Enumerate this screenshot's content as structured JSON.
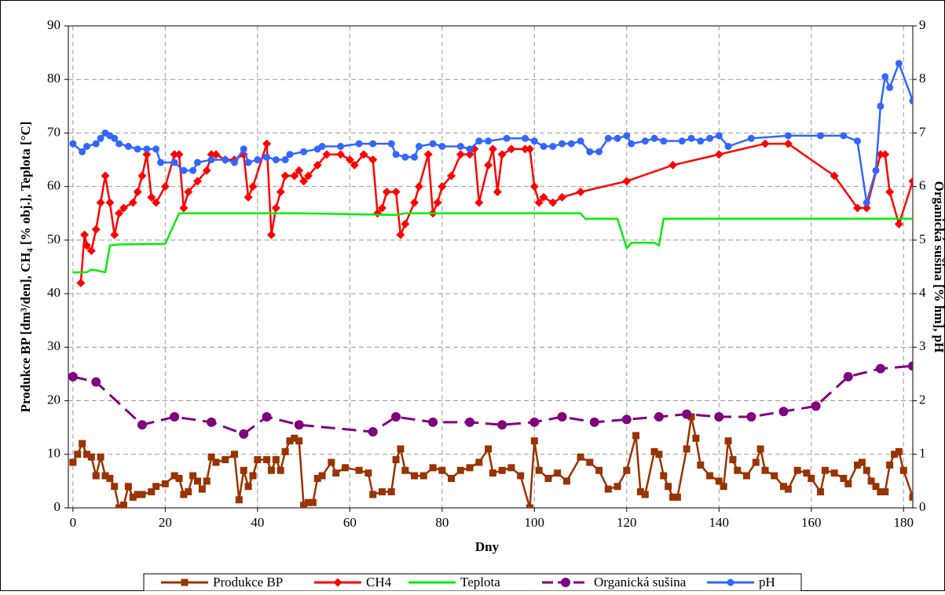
{
  "chart_data": {
    "type": "line",
    "xlabel": "Dny",
    "ylabel": "Produkce BP [dm³/den], CH₄ [% obj.], Teplota [°C]",
    "y2label": "Organická sušina [% hm], pH",
    "xlim": [
      -1,
      182
    ],
    "xticks": [
      0,
      20,
      40,
      60,
      80,
      100,
      120,
      140,
      160,
      180
    ],
    "ylim": [
      0,
      90
    ],
    "yticks": [
      0,
      10,
      20,
      30,
      40,
      50,
      60,
      70,
      80,
      90
    ],
    "y2lim": [
      0,
      9
    ],
    "y2ticks": [
      0,
      1,
      2,
      3,
      4,
      5,
      6,
      7,
      8,
      9
    ],
    "grid": true,
    "legend": "bottom",
    "series": [
      {
        "name": "Produkce BP",
        "color": "#993300",
        "marker": "square",
        "x": [
          0,
          1,
          2,
          3,
          4,
          5,
          6,
          7,
          8,
          9,
          10,
          11,
          12,
          13,
          14,
          15,
          17,
          18,
          20,
          22,
          23,
          24,
          25,
          26,
          27,
          28,
          29,
          30,
          31,
          33,
          35,
          36,
          37,
          38,
          39,
          40,
          42,
          43,
          44,
          45,
          46,
          47,
          48,
          49,
          50,
          51,
          52,
          53,
          54,
          56,
          57,
          59,
          62,
          64,
          65,
          67,
          69,
          70,
          71,
          72,
          74,
          76,
          78,
          80,
          82,
          84,
          86,
          88,
          90,
          91,
          93,
          95,
          97,
          99,
          100,
          101,
          103,
          105,
          107,
          110,
          112,
          114,
          116,
          118,
          120,
          122,
          123,
          124,
          126,
          127,
          128,
          129,
          130,
          131,
          133,
          134,
          135,
          136,
          138,
          140,
          141,
          142,
          143,
          144,
          146,
          148,
          149,
          150,
          152,
          154,
          155,
          157,
          159,
          160,
          162,
          163,
          165,
          167,
          168,
          170,
          171,
          172,
          173,
          174,
          175,
          176,
          177,
          178,
          179,
          180,
          182
        ],
        "values": [
          8.5,
          10,
          12,
          10,
          9.5,
          6,
          9.5,
          6,
          5.5,
          4,
          0,
          0.5,
          4,
          2,
          2.5,
          2.5,
          3,
          4,
          4.5,
          6,
          5.5,
          2.5,
          3,
          6,
          5,
          3.5,
          5,
          9.5,
          8.5,
          9,
          10,
          1.5,
          7,
          4,
          6,
          9,
          9,
          7,
          9,
          7,
          10.5,
          12.5,
          13,
          12.5,
          0.5,
          1,
          1,
          5.5,
          6,
          8.5,
          6.5,
          7.5,
          7,
          6.5,
          2.5,
          3,
          3,
          9,
          11,
          7,
          6,
          6,
          7.5,
          7,
          5.5,
          7,
          7.5,
          8.5,
          11,
          6.5,
          7,
          7.5,
          6,
          0,
          12.5,
          7,
          5.5,
          6.5,
          5,
          9.5,
          8.5,
          7,
          3.5,
          4,
          7,
          13.5,
          3,
          2.5,
          10.5,
          10,
          6,
          4,
          2,
          2,
          11,
          17,
          13,
          8,
          6,
          5,
          4,
          12.5,
          9,
          7,
          6,
          8.5,
          11,
          7,
          6,
          4,
          3.5,
          7,
          6.5,
          5.5,
          3,
          7,
          6.5,
          5.5,
          4.5,
          8,
          8.5,
          7,
          5,
          4,
          3,
          3,
          8,
          10,
          10.5,
          7,
          2
        ]
      },
      {
        "name": "CH4",
        "color": "#ff0000",
        "marker": "diamond",
        "x": [
          1.7,
          2.5,
          3,
          4,
          5,
          6,
          7,
          8,
          9,
          10,
          11,
          13,
          14,
          15,
          16,
          17,
          18,
          20,
          22,
          23,
          24,
          25,
          27,
          29,
          30,
          31,
          33,
          35,
          37,
          38,
          39,
          42,
          43,
          44,
          45,
          46,
          48,
          49,
          50,
          51,
          53,
          55,
          58,
          60,
          61,
          63,
          65,
          66,
          67,
          68,
          70,
          71,
          72,
          74,
          75,
          77,
          78,
          79,
          80,
          82,
          84,
          86,
          87,
          88,
          90,
          91,
          92,
          93,
          95,
          98,
          99,
          100,
          101,
          102,
          104,
          106,
          110,
          120,
          130,
          140,
          150,
          155,
          165,
          170,
          172,
          175,
          176,
          177,
          179,
          182
        ],
        "values": [
          42,
          51,
          49,
          48,
          52,
          57,
          62,
          57,
          51,
          55,
          56,
          57,
          59,
          62,
          66,
          58,
          57,
          60,
          66,
          66,
          56,
          59,
          61,
          63,
          66,
          66,
          65,
          65,
          66,
          58,
          60,
          68,
          51,
          56,
          59,
          62,
          62,
          63,
          61,
          62,
          64,
          66,
          66,
          65,
          64,
          66,
          65,
          55,
          56,
          59,
          59,
          51,
          53,
          57,
          60,
          66,
          55,
          57,
          60,
          62,
          66,
          66,
          67,
          57,
          64,
          67,
          59,
          66,
          67,
          67,
          67,
          60,
          57,
          58,
          57,
          58,
          59,
          61,
          64,
          66,
          68,
          68,
          62,
          56,
          56,
          66,
          66,
          59,
          53,
          61
        ]
      },
      {
        "name": "Teplota",
        "color": "#00ee00",
        "marker": "none",
        "x": [
          0,
          3,
          4,
          7,
          8,
          10,
          20,
          23,
          30,
          50,
          70,
          72,
          100,
          110,
          111,
          118,
          120,
          121,
          126,
          127,
          128,
          182
        ],
        "values": [
          44,
          44,
          44.5,
          44,
          49,
          49.2,
          49.3,
          55,
          55,
          55,
          54.7,
          55,
          55,
          55,
          54,
          54,
          48.5,
          49.5,
          49.5,
          49,
          54,
          54
        ]
      },
      {
        "name": "Organická sušina",
        "color": "#800080",
        "marker": "circle",
        "dash": true,
        "axis": "y2",
        "x": [
          0,
          5,
          15,
          22,
          30,
          37,
          42,
          49,
          65,
          70,
          78,
          86,
          93,
          100,
          106,
          113,
          120,
          127,
          133,
          140,
          147,
          154,
          161,
          168,
          175,
          182
        ],
        "values": [
          2.45,
          2.35,
          1.55,
          1.7,
          1.6,
          1.38,
          1.7,
          1.55,
          1.42,
          1.7,
          1.6,
          1.6,
          1.55,
          1.6,
          1.7,
          1.6,
          1.65,
          1.7,
          1.75,
          1.7,
          1.7,
          1.8,
          1.9,
          2.45,
          2.6,
          2.65
        ]
      },
      {
        "name": "pH",
        "color": "#3366ff",
        "marker": "circle",
        "axis": "y2",
        "x": [
          0,
          2,
          3,
          5,
          6,
          7,
          8,
          9,
          10,
          12,
          14,
          16,
          18,
          19,
          22,
          24,
          26,
          27,
          30,
          33,
          35,
          37,
          38,
          40,
          42,
          44,
          46,
          47,
          50,
          53,
          54,
          58,
          62,
          65,
          69,
          70,
          72,
          74,
          75,
          78,
          80,
          84,
          86,
          88,
          90,
          94,
          98,
          100,
          102,
          104,
          106,
          108,
          110,
          112,
          114,
          116,
          118,
          120,
          121,
          124,
          126,
          128,
          132,
          134,
          136,
          138,
          140,
          142,
          147,
          155,
          162,
          167,
          170,
          172,
          174,
          175,
          176,
          177,
          179,
          182
        ],
        "values": [
          6.8,
          6.65,
          6.75,
          6.8,
          6.9,
          7.0,
          6.95,
          6.9,
          6.8,
          6.75,
          6.7,
          6.7,
          6.7,
          6.45,
          6.45,
          6.3,
          6.3,
          6.45,
          6.5,
          6.5,
          6.45,
          6.7,
          6.45,
          6.5,
          6.55,
          6.5,
          6.5,
          6.6,
          6.65,
          6.7,
          6.75,
          6.75,
          6.8,
          6.8,
          6.8,
          6.6,
          6.55,
          6.55,
          6.75,
          6.8,
          6.75,
          6.75,
          6.7,
          6.85,
          6.85,
          6.9,
          6.9,
          6.85,
          6.75,
          6.75,
          6.8,
          6.8,
          6.85,
          6.65,
          6.65,
          6.9,
          6.9,
          6.95,
          6.8,
          6.85,
          6.9,
          6.85,
          6.85,
          6.9,
          6.85,
          6.9,
          6.95,
          6.75,
          6.9,
          6.95,
          6.95,
          6.95,
          6.85,
          5.7,
          6.3,
          7.5,
          8.05,
          7.85,
          8.3,
          7.6
        ]
      }
    ]
  }
}
